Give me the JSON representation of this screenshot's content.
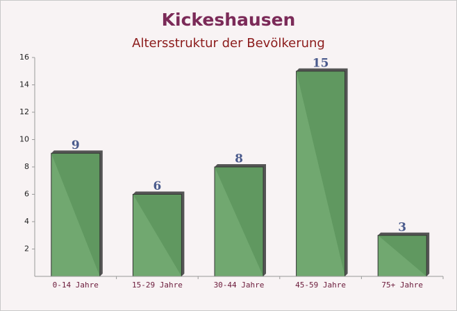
{
  "chart_data": {
    "type": "bar",
    "title": "Kickeshausen",
    "subtitle": "Altersstruktur der Bevölkerung",
    "categories": [
      "0-14 Jahre",
      "15-29 Jahre",
      "30-44 Jahre",
      "45-59 Jahre",
      "75+ Jahre"
    ],
    "values": [
      9,
      6,
      8,
      15,
      3
    ],
    "color": "#62a062",
    "ylim": [
      0,
      16
    ],
    "yticks": [
      2,
      4,
      6,
      8,
      10,
      12,
      14,
      16
    ],
    "grid": false
  }
}
